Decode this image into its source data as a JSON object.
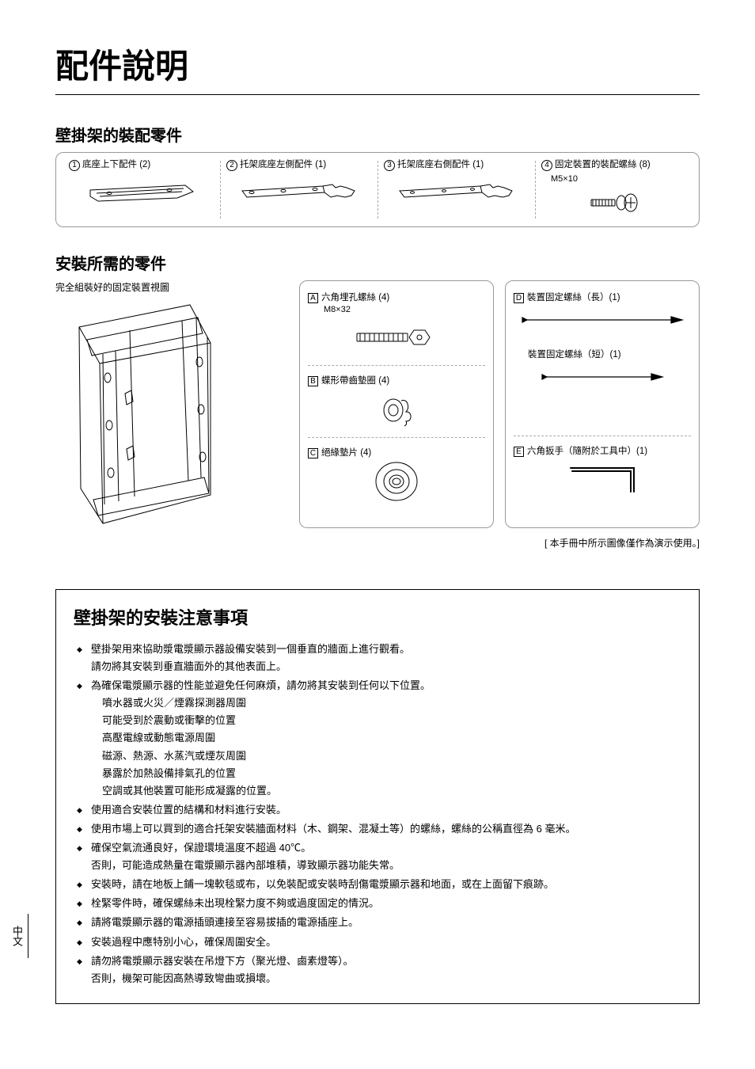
{
  "page_title": "配件說明",
  "section1_title": "壁掛架的裝配零件",
  "parts": [
    {
      "num": "1",
      "label": "底座上下配件 (2)",
      "sub": ""
    },
    {
      "num": "2",
      "label": "托架底座左側配件 (1)",
      "sub": ""
    },
    {
      "num": "3",
      "label": "托架底座右側配件 (1)",
      "sub": ""
    },
    {
      "num": "4",
      "label": "固定裝置的裝配螺絲 (8)",
      "sub": "M5×10"
    }
  ],
  "section2_title": "安裝所需的零件",
  "assembled_caption": "完全組裝好的固定裝置視圖",
  "install_left": [
    {
      "sq": "A",
      "label": "六角埋孔螺絲 (4)",
      "sub": "M8×32"
    },
    {
      "sq": "B",
      "label": "蝶形帶齒墊圈 (4)",
      "sub": ""
    },
    {
      "sq": "C",
      "label": "絕緣墊片 (4)",
      "sub": ""
    }
  ],
  "install_right": [
    {
      "sq": "D",
      "label": "裝置固定螺絲（長）(1)",
      "sub": "",
      "extra_label": "裝置固定螺絲（短）(1)"
    },
    {
      "sq": "E",
      "label": "六角扳手（隨附於工具中）(1)",
      "sub": ""
    }
  ],
  "disclaimer": "[ 本手冊中所示圖像僅作為演示使用。]",
  "notice_title": "壁掛架的安裝注意事項",
  "notice_items": [
    {
      "main": "壁掛架用來協助漿電漿顯示器設備安裝到一個垂直的牆面上進行觀看。",
      "lines": [
        "請勿將其安裝到垂直牆面外的其他表面上。"
      ]
    },
    {
      "main": "為確保電漿顯示器的性能並避免任何麻煩，請勿將其安裝到任何以下位置。",
      "lines": [
        "噴水器或火災／煙霧探測器周圍",
        "可能受到於震動或衝擊的位置",
        "高壓電線或動態電源周圍",
        "磁源、熱源、水蒸汽或煙灰周圍",
        "暴露於加熱設備排氣孔的位置",
        "空調或其他裝置可能形成凝露的位置。"
      ],
      "indent": true
    },
    {
      "main": "使用適合安裝位置的結構和材料進行安裝。",
      "lines": []
    },
    {
      "main": "使用市場上可以買到的適合托架安裝牆面材料（木、鋼架、混凝土等）的螺絲，螺絲的公稱直徑為 6 毫米。",
      "lines": []
    },
    {
      "main": "確保空氣流通良好，保證環境溫度不超過 40℃。",
      "lines": [
        "否則，可能造成熱量在電漿顯示器內部堆積，導致顯示器功能失常。"
      ]
    },
    {
      "main": "安裝時，請在地板上鋪一塊軟毯或布，以免裝配或安裝時刮傷電漿顯示器和地面，或在上面留下痕跡。",
      "lines": []
    },
    {
      "main": "栓緊零件時，確保螺絲未出現栓緊力度不夠或過度固定的情況。",
      "lines": []
    },
    {
      "main": "請將電漿顯示器的電源插頭連接至容易拔插的電源插座上。",
      "lines": []
    },
    {
      "main": "安裝過程中應特別小心，確保周圍安全。",
      "lines": []
    },
    {
      "main": "請勿將電漿顯示器安裝在吊燈下方（聚光燈、鹵素燈等）。",
      "lines": [
        "否則，機架可能因高熱導致彎曲或損壞。"
      ]
    }
  ],
  "side_tab": "中文",
  "colors": {
    "text": "#000000",
    "border": "#999999",
    "rule": "#000000",
    "bg": "#ffffff"
  }
}
